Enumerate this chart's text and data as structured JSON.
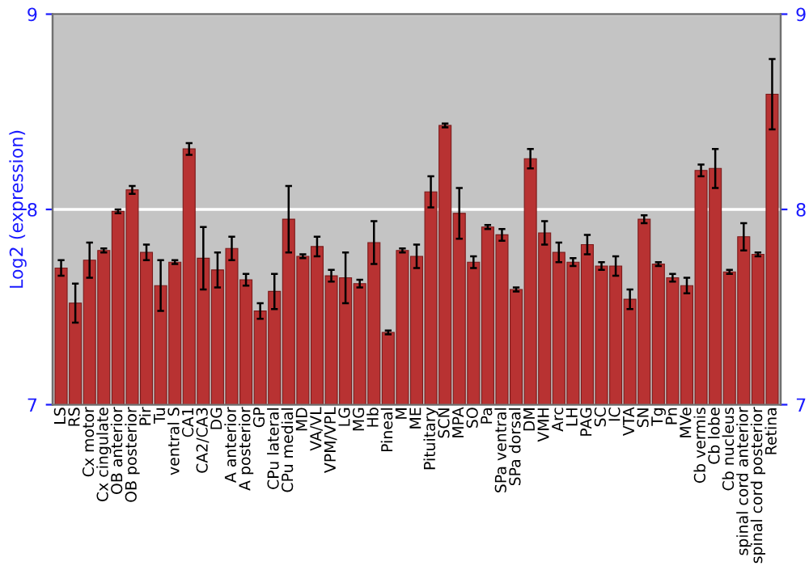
{
  "chart_data": {
    "type": "bar",
    "ylabel": "Log2 (expression)",
    "categories": [
      "LS",
      "RS",
      "Cx motor",
      "Cx cingulate",
      "OB anterior",
      "OB posterior",
      "Pir",
      "Tu",
      "ventral S",
      "CA1",
      "CA2/CA3",
      "DG",
      "A anterior",
      "A posterior",
      "GP",
      "CPu lateral",
      "CPu medial",
      "MD",
      "VA/VL",
      "VPM/VPL",
      "LG",
      "MG",
      "Hb",
      "Pineal",
      "M",
      "ME",
      "Pituitary",
      "SCN",
      "MPA",
      "SO",
      "Pa",
      "SPa ventral",
      "SPa dorsal",
      "DM",
      "VMH",
      "Arc",
      "LH",
      "PAG",
      "SC",
      "IC",
      "VTA",
      "SN",
      "Tg",
      "Pn",
      "MVe",
      "Cb vermis",
      "Cb lobe",
      "Cb nucleus",
      "spinal cord anterior",
      "spinal cord posterior",
      "Retina"
    ],
    "values": [
      7.7,
      7.52,
      7.74,
      7.79,
      7.99,
      8.1,
      7.78,
      7.61,
      7.73,
      8.31,
      7.75,
      7.69,
      7.8,
      7.64,
      7.48,
      7.58,
      7.95,
      7.76,
      7.81,
      7.66,
      7.65,
      7.62,
      7.83,
      7.37,
      7.79,
      7.76,
      8.09,
      8.43,
      7.98,
      7.73,
      7.91,
      7.87,
      7.59,
      8.26,
      7.88,
      7.78,
      7.73,
      7.82,
      7.71,
      7.71,
      7.54,
      7.95,
      7.72,
      7.65,
      7.61,
      8.2,
      8.21,
      7.68,
      7.86,
      7.77,
      8.59
    ],
    "errors": [
      0.04,
      0.1,
      0.09,
      0.01,
      0.01,
      0.02,
      0.04,
      0.13,
      0.01,
      0.03,
      0.16,
      0.09,
      0.06,
      0.03,
      0.04,
      0.09,
      0.17,
      0.01,
      0.05,
      0.03,
      0.13,
      0.02,
      0.11,
      0.01,
      0.01,
      0.06,
      0.08,
      0.01,
      0.13,
      0.03,
      0.01,
      0.03,
      0.01,
      0.05,
      0.06,
      0.05,
      0.02,
      0.05,
      0.02,
      0.05,
      0.05,
      0.02,
      0.01,
      0.02,
      0.04,
      0.03,
      0.1,
      0.01,
      0.07,
      0.01,
      0.18
    ],
    "color": "#b83232",
    "ylim": [
      7,
      9
    ],
    "yticks": [
      7,
      8,
      9
    ],
    "y2lim": [
      7,
      9
    ],
    "y2ticks": [
      7,
      8,
      9
    ],
    "grid": "y"
  }
}
